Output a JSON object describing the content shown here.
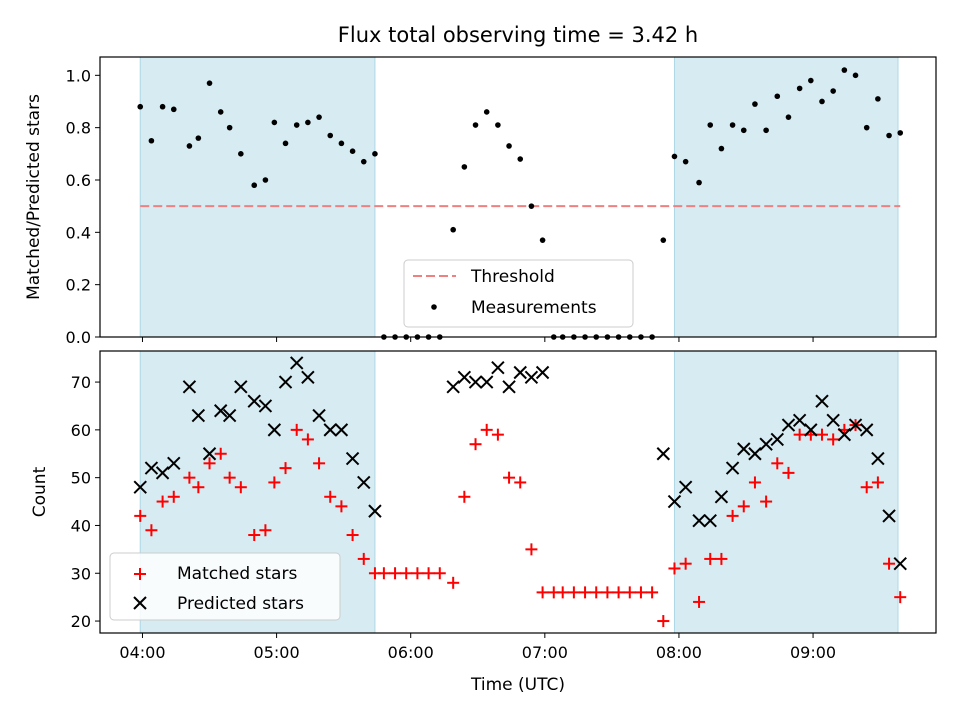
{
  "chart_data": [
    {
      "type": "scatter",
      "title": "Flux total observing time = 3.42 h",
      "xlabel": "",
      "ylabel": "Matched/Predicted stars",
      "xlim": [
        "03:41",
        "09:55"
      ],
      "ylim": [
        0,
        1.07
      ],
      "yticks": [
        0.0,
        0.2,
        0.4,
        0.6,
        0.8,
        1.0
      ],
      "ytick_labels": [
        "0.0",
        "0.2",
        "0.4",
        "0.6",
        "0.8",
        "1.0"
      ],
      "shaded_intervals": [
        [
          "03:59",
          "05:44"
        ],
        [
          "07:58",
          "09:38"
        ]
      ],
      "threshold": {
        "name": "Threshold",
        "value": 0.5,
        "color": "#f08080",
        "style": "dashed"
      },
      "legend_position": "lower center",
      "series": [
        {
          "name": "Measurements",
          "color": "#000000",
          "marker": "dot",
          "points": [
            [
              "03:59",
              0.88
            ],
            [
              "04:04",
              0.75
            ],
            [
              "04:09",
              0.88
            ],
            [
              "04:14",
              0.87
            ],
            [
              "04:21",
              0.73
            ],
            [
              "04:25",
              0.76
            ],
            [
              "04:30",
              0.97
            ],
            [
              "04:35",
              0.86
            ],
            [
              "04:39",
              0.8
            ],
            [
              "04:44",
              0.7
            ],
            [
              "04:50",
              0.58
            ],
            [
              "04:55",
              0.6
            ],
            [
              "04:59",
              0.82
            ],
            [
              "05:04",
              0.74
            ],
            [
              "05:09",
              0.81
            ],
            [
              "05:14",
              0.82
            ],
            [
              "05:19",
              0.84
            ],
            [
              "05:24",
              0.77
            ],
            [
              "05:29",
              0.74
            ],
            [
              "05:34",
              0.71
            ],
            [
              "05:39",
              0.67
            ],
            [
              "05:44",
              0.7
            ],
            [
              "05:48",
              0.0
            ],
            [
              "05:53",
              0.0
            ],
            [
              "05:58",
              0.0
            ],
            [
              "06:03",
              0.0
            ],
            [
              "06:08",
              0.0
            ],
            [
              "06:13",
              0.0
            ],
            [
              "06:19",
              0.41
            ],
            [
              "06:24",
              0.65
            ],
            [
              "06:29",
              0.81
            ],
            [
              "06:34",
              0.86
            ],
            [
              "06:39",
              0.81
            ],
            [
              "06:44",
              0.73
            ],
            [
              "06:49",
              0.68
            ],
            [
              "06:54",
              0.5
            ],
            [
              "06:59",
              0.37
            ],
            [
              "07:04",
              0.0
            ],
            [
              "07:08",
              0.0
            ],
            [
              "07:13",
              0.0
            ],
            [
              "07:18",
              0.0
            ],
            [
              "07:23",
              0.0
            ],
            [
              "07:28",
              0.0
            ],
            [
              "07:33",
              0.0
            ],
            [
              "07:38",
              0.0
            ],
            [
              "07:43",
              0.0
            ],
            [
              "07:48",
              0.0
            ],
            [
              "07:53",
              0.37
            ],
            [
              "07:58",
              0.69
            ],
            [
              "08:03",
              0.67
            ],
            [
              "08:09",
              0.59
            ],
            [
              "08:14",
              0.81
            ],
            [
              "08:19",
              0.72
            ],
            [
              "08:24",
              0.81
            ],
            [
              "08:29",
              0.79
            ],
            [
              "08:34",
              0.89
            ],
            [
              "08:39",
              0.79
            ],
            [
              "08:44",
              0.92
            ],
            [
              "08:49",
              0.84
            ],
            [
              "08:54",
              0.95
            ],
            [
              "08:59",
              0.98
            ],
            [
              "09:04",
              0.9
            ],
            [
              "09:09",
              0.94
            ],
            [
              "09:14",
              1.02
            ],
            [
              "09:19",
              1.0
            ],
            [
              "09:24",
              0.8
            ],
            [
              "09:29",
              0.91
            ],
            [
              "09:34",
              0.77
            ],
            [
              "09:39",
              0.78
            ]
          ]
        }
      ]
    },
    {
      "type": "scatter",
      "title": "",
      "xlabel": "Time (UTC)",
      "ylabel": "Count",
      "xlim": [
        "03:41",
        "09:55"
      ],
      "ylim": [
        17.5,
        76.5
      ],
      "xticks": [
        "04:00",
        "05:00",
        "06:00",
        "07:00",
        "08:00",
        "09:00"
      ],
      "xtick_labels": [
        "04:00",
        "05:00",
        "06:00",
        "07:00",
        "08:00",
        "09:00"
      ],
      "yticks": [
        20,
        30,
        40,
        50,
        60,
        70
      ],
      "ytick_labels": [
        "20",
        "30",
        "40",
        "50",
        "60",
        "70"
      ],
      "shaded_intervals": [
        [
          "03:59",
          "05:44"
        ],
        [
          "07:58",
          "09:38"
        ]
      ],
      "legend_position": "lower left",
      "series": [
        {
          "name": "Matched stars",
          "color": "#ff0000",
          "marker": "plus",
          "points": [
            [
              "03:59",
              42
            ],
            [
              "04:04",
              39
            ],
            [
              "04:09",
              45
            ],
            [
              "04:14",
              46
            ],
            [
              "04:21",
              50
            ],
            [
              "04:25",
              48
            ],
            [
              "04:30",
              53
            ],
            [
              "04:35",
              55
            ],
            [
              "04:39",
              50
            ],
            [
              "04:44",
              48
            ],
            [
              "04:50",
              38
            ],
            [
              "04:55",
              39
            ],
            [
              "04:59",
              49
            ],
            [
              "05:04",
              52
            ],
            [
              "05:09",
              60
            ],
            [
              "05:14",
              58
            ],
            [
              "05:19",
              53
            ],
            [
              "05:24",
              46
            ],
            [
              "05:29",
              44
            ],
            [
              "05:34",
              38
            ],
            [
              "05:39",
              33
            ],
            [
              "05:44",
              30
            ],
            [
              "05:48",
              30
            ],
            [
              "05:53",
              30
            ],
            [
              "05:58",
              30
            ],
            [
              "06:03",
              30
            ],
            [
              "06:08",
              30
            ],
            [
              "06:13",
              30
            ],
            [
              "06:19",
              28
            ],
            [
              "06:24",
              46
            ],
            [
              "06:29",
              57
            ],
            [
              "06:34",
              60
            ],
            [
              "06:39",
              59
            ],
            [
              "06:44",
              50
            ],
            [
              "06:49",
              49
            ],
            [
              "06:54",
              35
            ],
            [
              "06:59",
              26
            ],
            [
              "07:04",
              26
            ],
            [
              "07:08",
              26
            ],
            [
              "07:13",
              26
            ],
            [
              "07:18",
              26
            ],
            [
              "07:23",
              26
            ],
            [
              "07:28",
              26
            ],
            [
              "07:33",
              26
            ],
            [
              "07:38",
              26
            ],
            [
              "07:43",
              26
            ],
            [
              "07:48",
              26
            ],
            [
              "07:53",
              20
            ],
            [
              "07:58",
              31
            ],
            [
              "08:03",
              32
            ],
            [
              "08:09",
              24
            ],
            [
              "08:14",
              33
            ],
            [
              "08:19",
              33
            ],
            [
              "08:24",
              42
            ],
            [
              "08:29",
              44
            ],
            [
              "08:34",
              49
            ],
            [
              "08:39",
              45
            ],
            [
              "08:44",
              53
            ],
            [
              "08:49",
              51
            ],
            [
              "08:54",
              59
            ],
            [
              "08:59",
              59
            ],
            [
              "09:04",
              59
            ],
            [
              "09:09",
              58
            ],
            [
              "09:14",
              60
            ],
            [
              "09:19",
              61
            ],
            [
              "09:24",
              48
            ],
            [
              "09:29",
              49
            ],
            [
              "09:34",
              32
            ],
            [
              "09:39",
              25
            ]
          ]
        },
        {
          "name": "Predicted stars",
          "color": "#000000",
          "marker": "x",
          "points": [
            [
              "03:59",
              48
            ],
            [
              "04:04",
              52
            ],
            [
              "04:09",
              51
            ],
            [
              "04:14",
              53
            ],
            [
              "04:21",
              69
            ],
            [
              "04:25",
              63
            ],
            [
              "04:30",
              55
            ],
            [
              "04:35",
              64
            ],
            [
              "04:39",
              63
            ],
            [
              "04:44",
              69
            ],
            [
              "04:50",
              66
            ],
            [
              "04:55",
              65
            ],
            [
              "04:59",
              60
            ],
            [
              "05:04",
              70
            ],
            [
              "05:09",
              74
            ],
            [
              "05:14",
              71
            ],
            [
              "05:19",
              63
            ],
            [
              "05:24",
              60
            ],
            [
              "05:29",
              60
            ],
            [
              "05:34",
              54
            ],
            [
              "05:39",
              49
            ],
            [
              "05:44",
              43
            ],
            [
              "06:19",
              69
            ],
            [
              "06:24",
              71
            ],
            [
              "06:29",
              70
            ],
            [
              "06:34",
              70
            ],
            [
              "06:39",
              73
            ],
            [
              "06:44",
              69
            ],
            [
              "06:49",
              72
            ],
            [
              "06:54",
              71
            ],
            [
              "06:59",
              72
            ],
            [
              "07:53",
              55
            ],
            [
              "07:58",
              45
            ],
            [
              "08:03",
              48
            ],
            [
              "08:09",
              41
            ],
            [
              "08:14",
              41
            ],
            [
              "08:19",
              46
            ],
            [
              "08:24",
              52
            ],
            [
              "08:29",
              56
            ],
            [
              "08:34",
              55
            ],
            [
              "08:39",
              57
            ],
            [
              "08:44",
              58
            ],
            [
              "08:49",
              61
            ],
            [
              "08:54",
              62
            ],
            [
              "08:59",
              60
            ],
            [
              "09:04",
              66
            ],
            [
              "09:09",
              62
            ],
            [
              "09:14",
              59
            ],
            [
              "09:19",
              61
            ],
            [
              "09:24",
              60
            ],
            [
              "09:29",
              54
            ],
            [
              "09:34",
              42
            ],
            [
              "09:39",
              32
            ]
          ]
        }
      ]
    }
  ]
}
